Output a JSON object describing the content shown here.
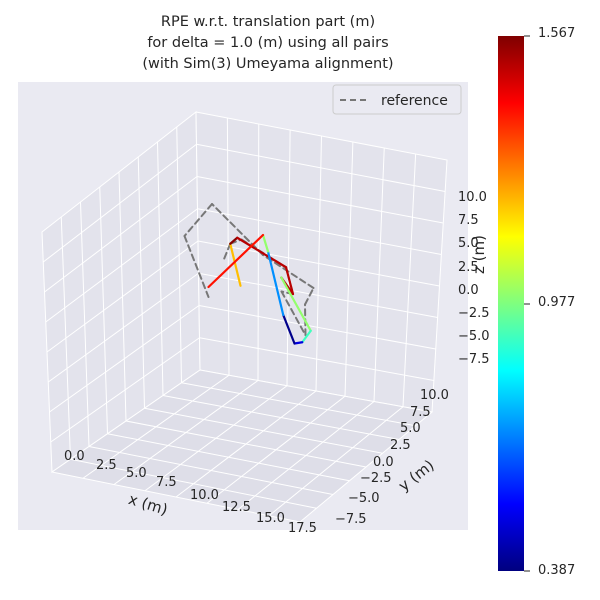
{
  "chart_data": {
    "type": "line",
    "title": [
      "RPE w.r.t. translation part (m)",
      "for delta = 1.0 (m) using all pairs",
      "(with Sim(3) Umeyama alignment)"
    ],
    "xlabel": "x (m)",
    "ylabel": "y (m)",
    "zlabel": "z (m)",
    "x_ticks": [
      "0.0",
      "2.5",
      "5.0",
      "7.5",
      "10.0",
      "12.5",
      "15.0",
      "17.5"
    ],
    "y_ticks": [
      "−7.5",
      "−5.0",
      "−2.5",
      "0.0",
      "2.5",
      "5.0",
      "7.5",
      "10.0"
    ],
    "z_ticks": [
      "10.0",
      "7.5",
      "5.0",
      "2.5",
      "0.0",
      "−2.5",
      "−5.0",
      "−7.5"
    ],
    "legend": {
      "label": "reference",
      "placement": "top-right",
      "style": "dashed",
      "color": "#777777"
    },
    "colorbar": {
      "colormap": "jet",
      "min": "0.387",
      "mid": "0.977",
      "max": "1.567"
    },
    "grid": true,
    "pane_color": "#eaeaf2",
    "reference": {
      "x": [
        0.0,
        0.5,
        1.0,
        8.5,
        12.0,
        9.0,
        14.5,
        13.0,
        14.0,
        6.0,
        0.0,
        -2.0,
        0.0
      ],
      "y": [
        5.5,
        6.0,
        8.0,
        2.5,
        -4.0,
        0.0,
        -6.5,
        -3.0,
        -3.0,
        2.0,
        2.0,
        -1.0,
        1.0
      ],
      "z": [
        4.0,
        6.0,
        8.0,
        4.0,
        -2.0,
        0.0,
        -7.0,
        -2.0,
        0.0,
        4.0,
        7.0,
        1.0,
        -3.0
      ]
    },
    "estimate": {
      "x": [
        1.5,
        0.5,
        0.5,
        8.5,
        12.0,
        10.0,
        14.5,
        13.5,
        13.0,
        9.0,
        7.0,
        6.0,
        0.0
      ],
      "y": [
        6.5,
        6.0,
        8.0,
        2.5,
        -4.0,
        -2.5,
        -5.0,
        -5.0,
        -6.0,
        0.5,
        1.0,
        2.0,
        1.0
      ],
      "z": [
        2.5,
        6.0,
        8.0,
        4.0,
        -2.0,
        0.0,
        -5.5,
        -7.0,
        -8.0,
        -2.0,
        4.0,
        6.0,
        -2.0
      ],
      "error": [
        1.2,
        1.56,
        1.5,
        1.5,
        1.5,
        1.0,
        0.9,
        0.5,
        0.4,
        0.7,
        1.0,
        1.4,
        1.3
      ]
    }
  }
}
